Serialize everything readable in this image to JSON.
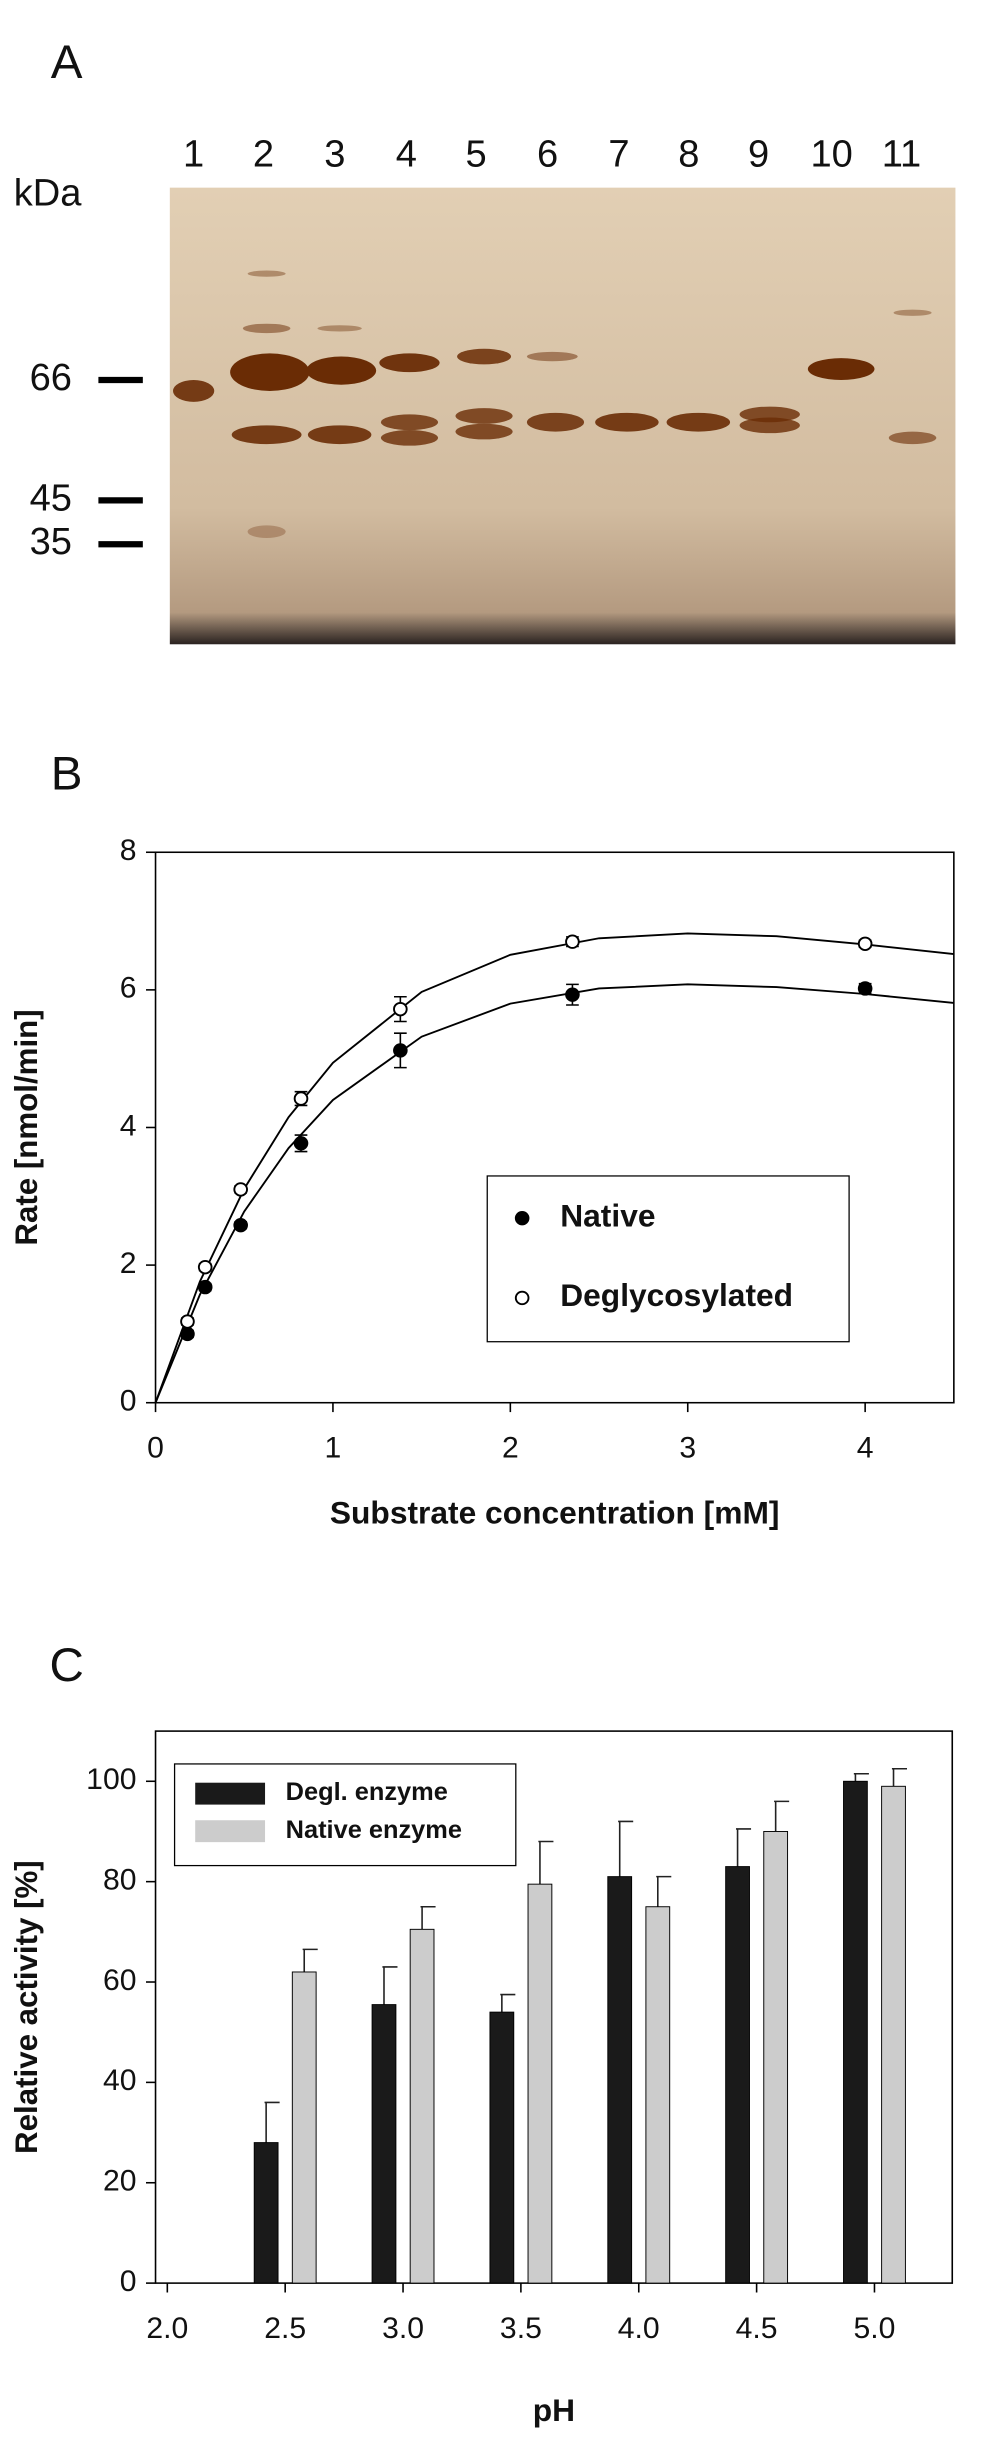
{
  "gel": {
    "label": "A",
    "unit": "kDa",
    "lanes": [
      "1",
      "2",
      "3",
      "4",
      "5",
      "6",
      "7",
      "8",
      "9",
      "10",
      "11"
    ],
    "markers": [
      66,
      45,
      35
    ]
  },
  "chart_data": [
    {
      "type": "scatter",
      "label": "B",
      "xlabel": "Substrate concentration [mM]",
      "ylabel": "Rate [nmol/min]",
      "xlim": [
        0,
        4.5
      ],
      "ylim": [
        0,
        8
      ],
      "xticks": [
        0,
        1,
        2,
        3,
        4
      ],
      "yticks": [
        0,
        2,
        4,
        6,
        8
      ],
      "legend": "lower right",
      "fit_x": [
        0,
        0.25,
        0.5,
        0.75,
        1,
        1.5,
        2,
        2.5,
        3,
        3.5,
        4,
        4.5
      ],
      "series": [
        {
          "name": "Native",
          "color": "#000000",
          "fill": "#000000",
          "x": [
            0.18,
            0.28,
            0.48,
            0.82,
            1.38,
            2.35,
            4.0
          ],
          "values": [
            1.0,
            1.68,
            2.58,
            3.77,
            5.12,
            5.93,
            6.02
          ],
          "errors": [
            0.05,
            0.05,
            0.05,
            0.12,
            0.25,
            0.15,
            0.07
          ],
          "fit_values": [
            0,
            1.57,
            2.78,
            3.7,
            4.4,
            5.32,
            5.8,
            6.02,
            6.08,
            6.04,
            5.94,
            5.81
          ]
        },
        {
          "name": "Deglycosylated",
          "color": "#000000",
          "fill": "#ffffff",
          "x": [
            0.18,
            0.28,
            0.48,
            0.82,
            1.38,
            2.35,
            4.0
          ],
          "values": [
            1.18,
            1.97,
            3.1,
            4.42,
            5.72,
            6.7,
            6.67
          ],
          "errors": [
            0.05,
            0.05,
            0.05,
            0.1,
            0.18,
            0.07,
            0.05
          ],
          "fit_values": [
            0,
            1.76,
            3.11,
            4.15,
            4.94,
            5.97,
            6.51,
            6.75,
            6.82,
            6.78,
            6.66,
            6.52
          ]
        }
      ]
    },
    {
      "type": "bar",
      "label": "C",
      "xlabel": "pH",
      "ylabel": "Relative activity [%]",
      "x": [
        2.5,
        3.0,
        3.5,
        4.0,
        4.5,
        5.0
      ],
      "xlim": [
        1.95,
        5.33
      ],
      "xticks": [
        {
          "value": 2,
          "label": "2.0"
        },
        {
          "value": 2.5,
          "label": "2.5"
        },
        {
          "value": 3,
          "label": "3.0"
        },
        {
          "value": 3.5,
          "label": "3.5"
        },
        {
          "value": 4,
          "label": "4.0"
        },
        {
          "value": 4.5,
          "label": "4.5"
        },
        {
          "value": 5,
          "label": "5.0"
        }
      ],
      "ylim": [
        0,
        110
      ],
      "yticks": [
        0,
        20,
        40,
        60,
        80,
        100
      ],
      "legend": "upper left",
      "series": [
        {
          "name": "Degl. enzyme",
          "color": "#1a1a1a",
          "values": [
            28,
            55.5,
            54,
            81,
            83,
            100
          ],
          "errors": [
            8,
            7.5,
            3.5,
            11,
            7.5,
            1.5
          ]
        },
        {
          "name": "Native enzyme",
          "color": "#cccccc",
          "values": [
            62,
            70.5,
            79.5,
            75,
            90,
            99
          ],
          "errors": [
            4.5,
            4.5,
            8.5,
            6,
            6,
            3.5
          ]
        }
      ]
    }
  ]
}
